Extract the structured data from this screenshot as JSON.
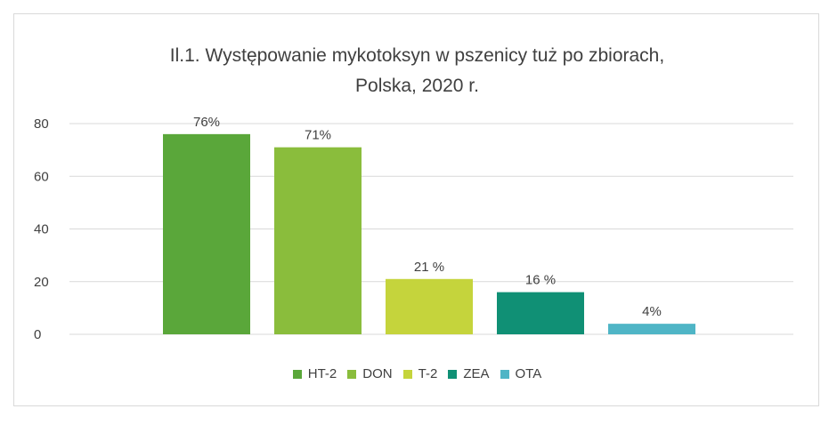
{
  "chart_data": {
    "type": "bar",
    "title_line1": "Il.1. Występowanie mykotoksyn w pszenicy tuż po zbiorach,",
    "title_line2": "Polska, 2020 r.",
    "categories": [
      "HT-2",
      "DON",
      "T-2",
      "ZEA",
      "OTA"
    ],
    "values": [
      76,
      71,
      21,
      16,
      4
    ],
    "data_labels": [
      "76%",
      "71%",
      "21 %",
      "16 %",
      "4%"
    ],
    "colors": [
      "#5aa73a",
      "#8abd3c",
      "#c5d43c",
      "#109075",
      "#4fb5c6"
    ],
    "ylim": [
      0,
      80
    ],
    "yticks": [
      "0",
      "20",
      "40",
      "60",
      "80"
    ],
    "grid": true,
    "legend_position": "bottom",
    "xlabel": "",
    "ylabel": ""
  }
}
